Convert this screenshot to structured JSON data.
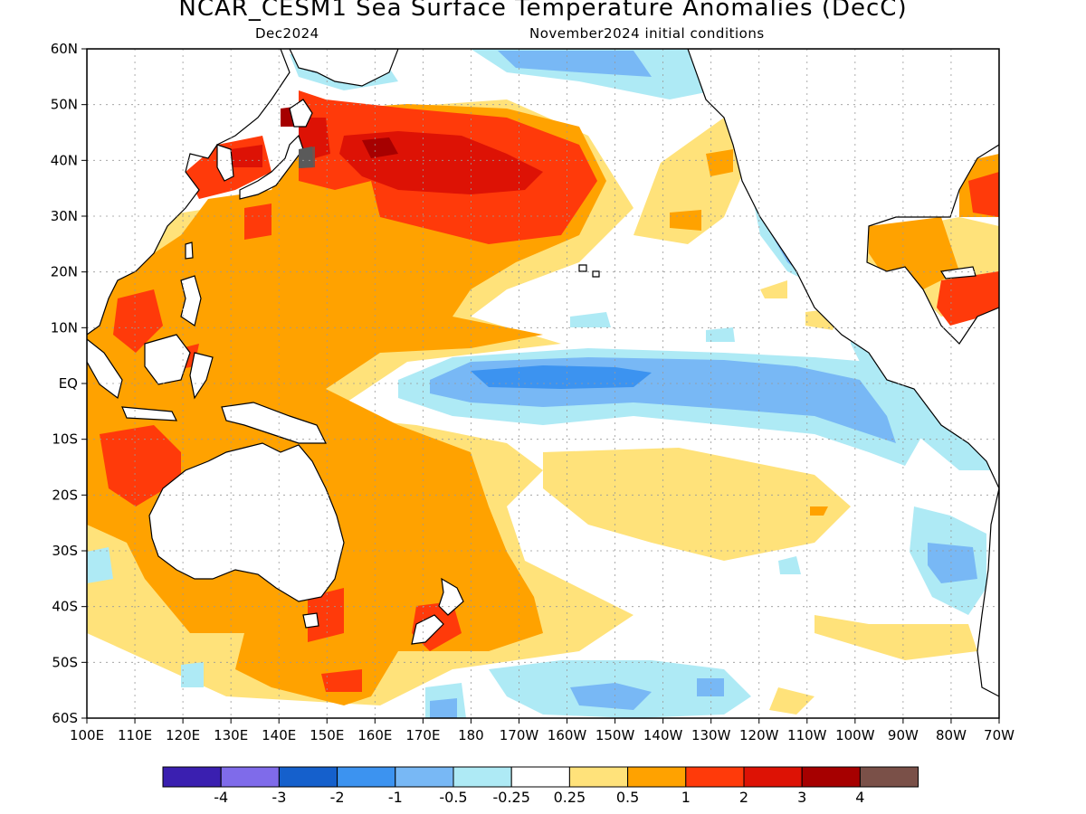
{
  "title": "NCAR_CESM1 Sea Surface Temperature Anomalies (DecC)",
  "forecast_month": "Dec2024",
  "init_conditions": "November2024 initial conditions",
  "lat_labels": [
    "60N",
    "50N",
    "40N",
    "30N",
    "20N",
    "10N",
    "EQ",
    "10S",
    "20S",
    "30S",
    "40S",
    "50S",
    "60S"
  ],
  "lon_labels": [
    "100E",
    "110E",
    "120E",
    "130E",
    "140E",
    "150E",
    "160E",
    "170E",
    "180",
    "170W",
    "160W",
    "150W",
    "140W",
    "130W",
    "120W",
    "110W",
    "100W",
    "90W",
    "80W",
    "70W"
  ],
  "colorbar": {
    "colors": [
      "#3a1fb0",
      "#7f6bea",
      "#1560cc",
      "#3c93f0",
      "#78b8f5",
      "#aeeaf5",
      "#ffffff",
      "#ffe27a",
      "#ffa200",
      "#ff3a0a",
      "#dd1205",
      "#a60000",
      "#7a5048"
    ],
    "labels": [
      "-4",
      "-3",
      "-2",
      "-1",
      "-0.5",
      "-0.25",
      "0.25",
      "0.5",
      "1",
      "2",
      "3",
      "4"
    ]
  },
  "land_color": "#ffffff",
  "gray_patch_color": "#5a5a5a"
}
